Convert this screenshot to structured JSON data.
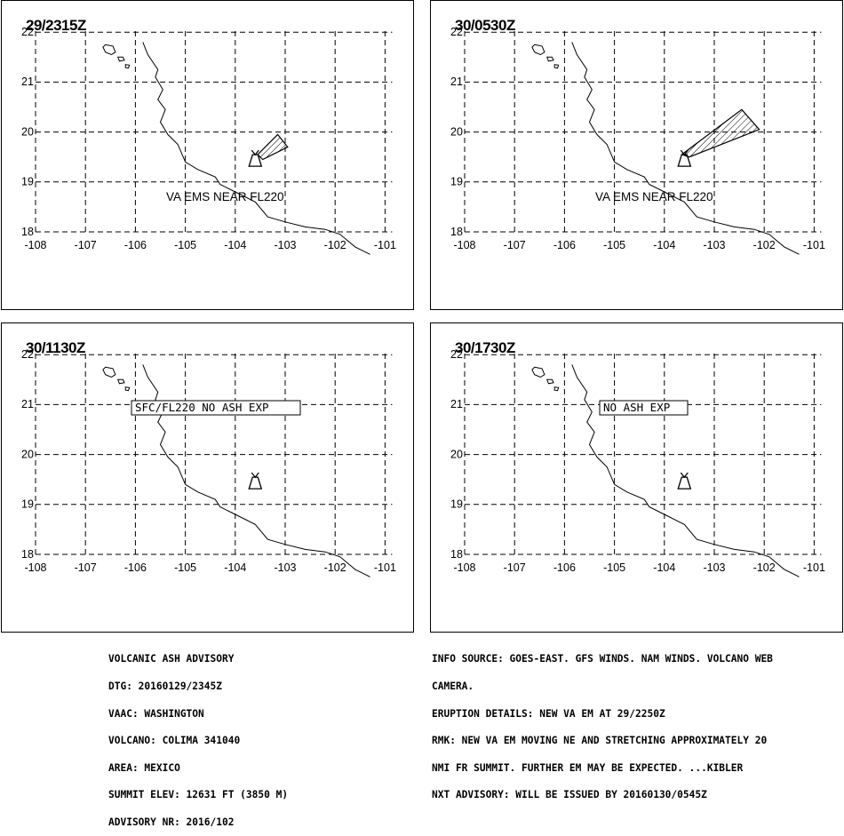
{
  "panels": [
    {
      "time": "29/2315Z",
      "label": "VA EMS NEAR FL220",
      "box_label": "",
      "ash": "small"
    },
    {
      "time": "30/0530Z",
      "label": "VA EMS NEAR FL220",
      "box_label": "",
      "ash": "large"
    },
    {
      "time": "30/1130Z",
      "label": "",
      "box_label": "SFC/FL220 NO ASH EXP",
      "ash": "none"
    },
    {
      "time": "30/1730Z",
      "label": "",
      "box_label": "NO ASH EXP",
      "ash": "none"
    }
  ],
  "map": {
    "lon_ticks": [
      "-108",
      "-107",
      "-106",
      "-105",
      "-104",
      "-103",
      "-102",
      "-101"
    ],
    "lat_ticks": [
      "22",
      "21",
      "20",
      "19",
      "18"
    ],
    "volcano": {
      "lon": -103.6,
      "lat": 19.51
    },
    "ash_small": [
      [
        -103.55,
        19.55
      ],
      [
        -103.15,
        19.95
      ],
      [
        -102.95,
        19.7
      ],
      [
        -103.45,
        19.45
      ]
    ],
    "ash_large": [
      [
        -103.65,
        19.55
      ],
      [
        -102.45,
        20.45
      ],
      [
        -102.1,
        20.05
      ],
      [
        -103.5,
        19.5
      ]
    ]
  },
  "advisory_left": [
    "VOLCANIC ASH ADVISORY",
    "DTG: 20160129/2345Z",
    "VAAC: WASHINGTON",
    "VOLCANO: COLIMA 341040",
    "AREA: MEXICO",
    "SUMMIT ELEV: 12631 FT (3850 M)",
    "ADVISORY NR: 2016/102"
  ],
  "advisory_right": [
    "INFO SOURCE: GOES-EAST. GFS WINDS. NAM WINDS. VOLCANO WEB",
    "CAMERA.",
    "ERUPTION DETAILS: NEW VA EM AT 29/2250Z",
    "RMK: NEW VA EM MOVING NE AND STRETCHING APPROXIMATELY 20",
    "NMI FR SUMMIT. FURTHER EM MAY BE EXPECTED. ...KIBLER",
    "NXT ADVISORY: WILL BE ISSUED BY 20160130/0545Z"
  ]
}
